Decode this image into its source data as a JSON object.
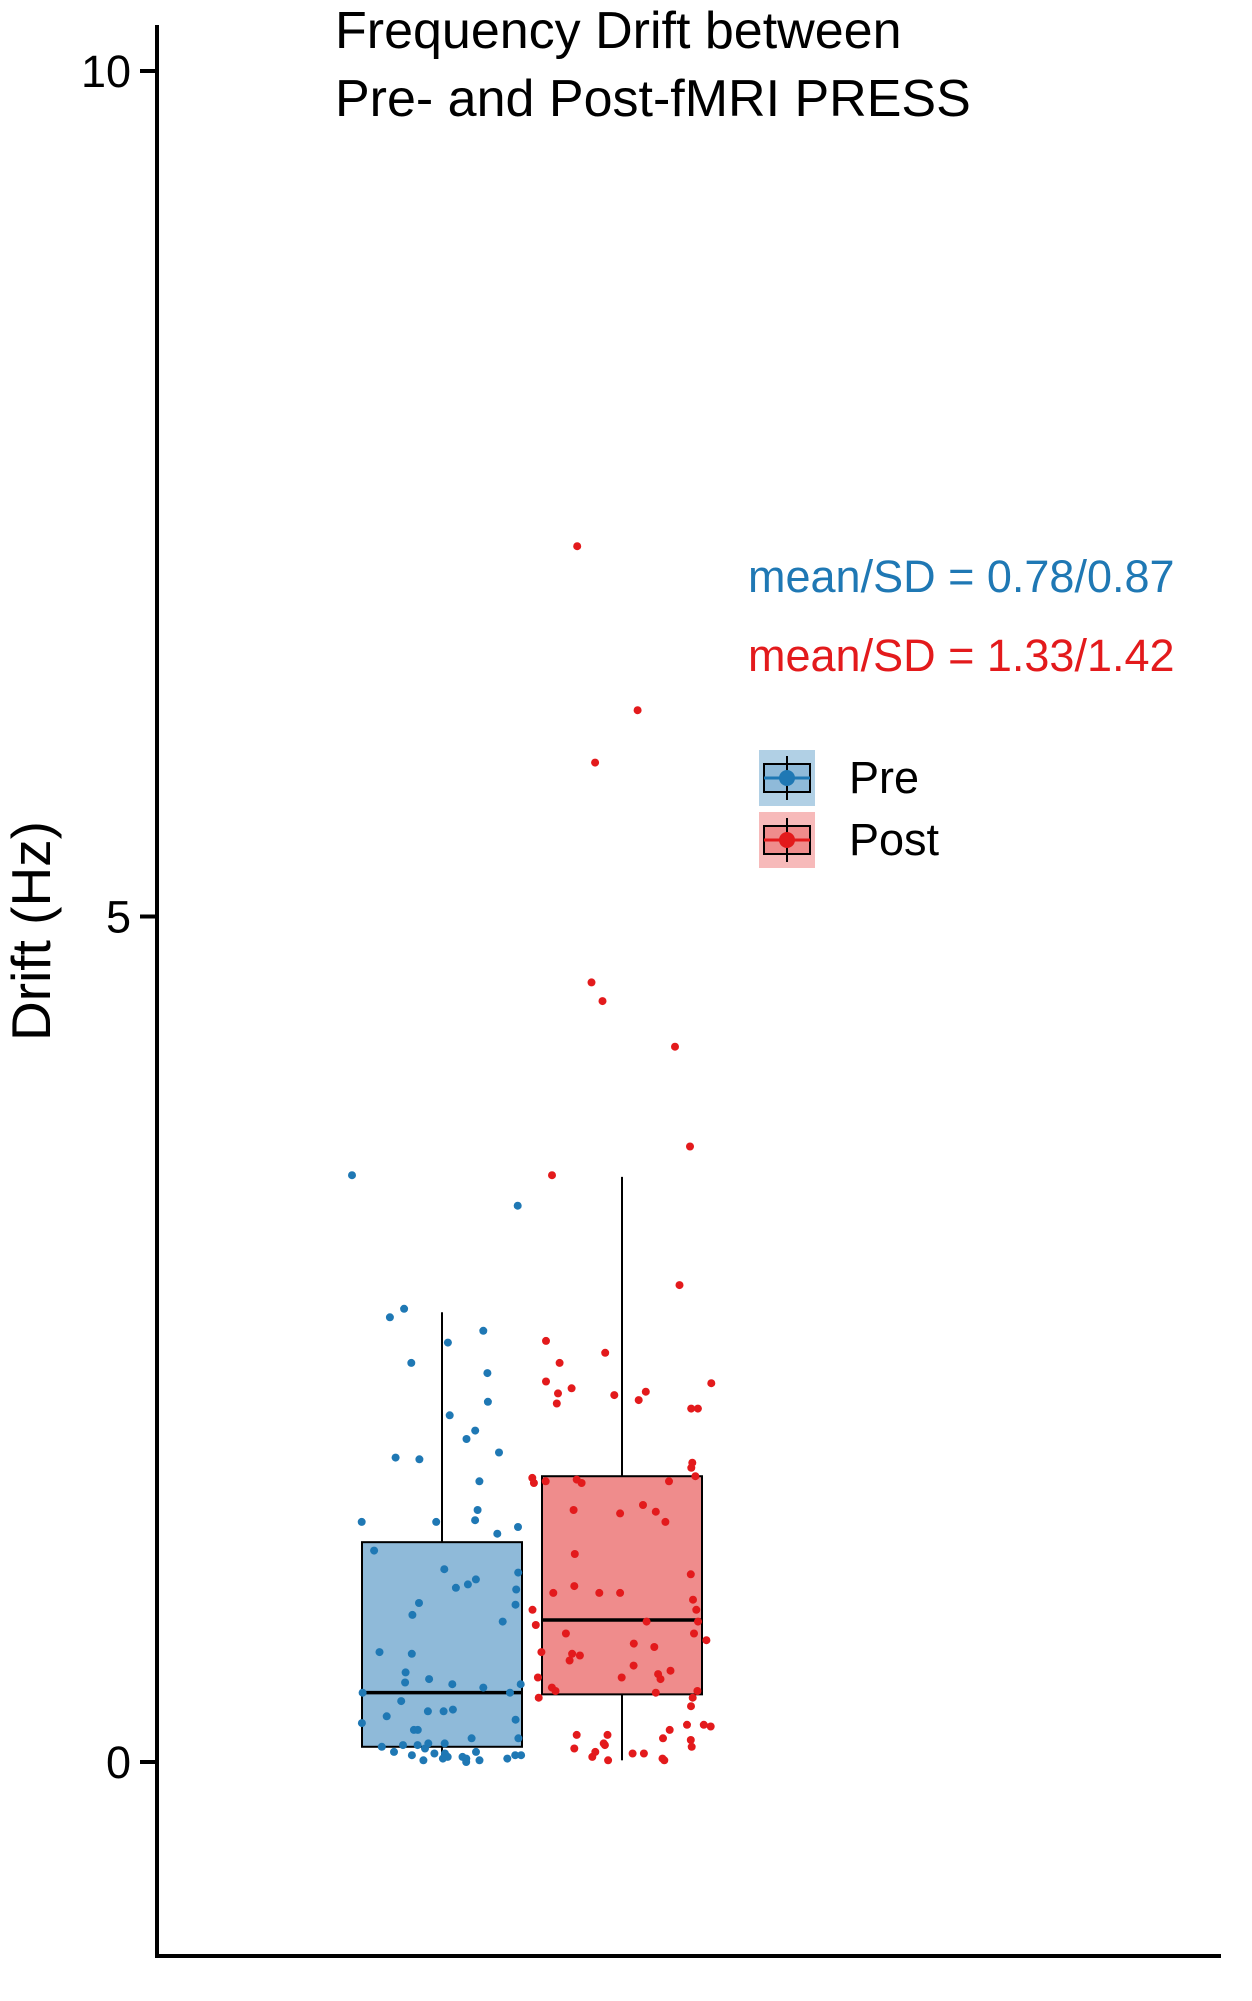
{
  "chart_data": {
    "type": "box",
    "title": [
      "Frequency Drift between",
      "Pre- and Post-fMRI PRESS"
    ],
    "xlabel": "",
    "ylabel": "Drift (Hz)",
    "ylim": [
      -1.6,
      10.5
    ],
    "yticks": [
      0,
      5,
      10
    ],
    "ytick_labels": [
      "0",
      "5",
      "10"
    ],
    "grid": false,
    "legend": {
      "placement": "right",
      "entries": [
        "Pre",
        "Post"
      ]
    },
    "annotations": [
      {
        "text": "mean/SD = 0.78/0.87",
        "series": "Pre"
      },
      {
        "text": "mean/SD = 1.33/1.42",
        "series": "Post"
      }
    ],
    "series": [
      {
        "name": "Pre",
        "color": "#1f78b4",
        "fill": "#8fbad9",
        "box": {
          "whisker_low": 0.0,
          "q1": 0.09,
          "median": 0.41,
          "q3": 1.3,
          "whisker_high": 2.66
        },
        "points": [
          3.47,
          3.29,
          2.68,
          2.63,
          2.55,
          2.48,
          2.36,
          2.3,
          2.13,
          2.05,
          1.96,
          1.91,
          1.83,
          1.8,
          1.79,
          1.66,
          1.49,
          1.42,
          1.43,
          1.42,
          1.39,
          1.35,
          1.25,
          1.14,
          1.12,
          1.08,
          1.05,
          1.03,
          1.02,
          0.93,
          0.94,
          0.87,
          0.83,
          0.64,
          0.65,
          0.53,
          0.49,
          0.47,
          0.46,
          0.46,
          0.44,
          0.41,
          0.41,
          0.36,
          0.31,
          0.3,
          0.3,
          0.27,
          0.25,
          0.23,
          0.19,
          0.19,
          0.14,
          0.14,
          0.11,
          0.09,
          0.08,
          0.1,
          0.1,
          0.11,
          0.04,
          0.03,
          0.03,
          0.06,
          0.04,
          0.05,
          0.02,
          0.02,
          0.0,
          0.05,
          0.02,
          0.06,
          0.04,
          0.01,
          0.01
        ]
      },
      {
        "name": "Post",
        "color": "#e31a1c",
        "fill": "#ef8c8c",
        "box": {
          "whisker_low": 0.01,
          "q1": 0.4,
          "median": 0.84,
          "q3": 1.69,
          "whisker_high": 3.46
        },
        "points": [
          7.19,
          6.22,
          5.91,
          4.61,
          4.5,
          4.23,
          3.64,
          3.47,
          2.82,
          2.49,
          2.42,
          2.36,
          2.25,
          2.24,
          2.21,
          2.19,
          2.18,
          2.17,
          2.14,
          2.12,
          2.09,
          2.09,
          1.77,
          1.74,
          1.69,
          1.66,
          1.65,
          1.65,
          1.67,
          1.66,
          1.68,
          1.52,
          1.49,
          1.42,
          1.47,
          1.48,
          1.23,
          1.11,
          1.04,
          1.0,
          0.96,
          1.0,
          1.0,
          0.9,
          0.9,
          0.83,
          0.83,
          0.81,
          0.76,
          0.76,
          0.72,
          0.7,
          0.68,
          0.63,
          0.64,
          0.6,
          0.57,
          0.65,
          0.54,
          0.52,
          0.49,
          0.5,
          0.5,
          0.44,
          0.42,
          0.42,
          0.41,
          0.38,
          0.38,
          0.33,
          0.22,
          0.21,
          0.22,
          0.19,
          0.16,
          0.16,
          0.14,
          0.13,
          0.11,
          0.08,
          0.1,
          0.09,
          0.05,
          0.06,
          0.05,
          0.01,
          0.03,
          0.02,
          0.01
        ]
      }
    ]
  }
}
